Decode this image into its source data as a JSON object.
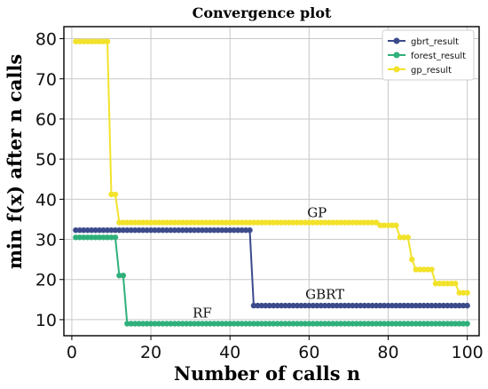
{
  "chart_data": {
    "type": "line",
    "title": "Convergence plot",
    "xlabel": "Number of calls n",
    "ylabel": "min f(x) after n calls",
    "xlim": [
      -2,
      103
    ],
    "ylim": [
      6,
      83
    ],
    "xticks": [
      0,
      20,
      40,
      60,
      80,
      100
    ],
    "yticks": [
      10,
      20,
      30,
      40,
      50,
      60,
      70,
      80
    ],
    "grid": true,
    "legend_position": "top-right",
    "series": [
      {
        "name": "gbrt_result",
        "color": "#3b4b8c",
        "points": [
          [
            1,
            32.3
          ],
          [
            45,
            32.3
          ],
          [
            46,
            13.5
          ],
          [
            100,
            13.5
          ]
        ]
      },
      {
        "name": "forest_result",
        "color": "#2fb07a",
        "points": [
          [
            1,
            30.5
          ],
          [
            11,
            30.5
          ],
          [
            12,
            21
          ],
          [
            13,
            21
          ],
          [
            14,
            9
          ],
          [
            100,
            9
          ]
        ]
      },
      {
        "name": "gp_result",
        "color": "#f2e22a",
        "points": [
          [
            1,
            79.3
          ],
          [
            9,
            79.3
          ],
          [
            10,
            41.2
          ],
          [
            11,
            41.2
          ],
          [
            12,
            34.2
          ],
          [
            77,
            34.2
          ],
          [
            78,
            33.5
          ],
          [
            82,
            33.5
          ],
          [
            83,
            30.5
          ],
          [
            85,
            30.5
          ],
          [
            86,
            25
          ],
          [
            87,
            22.5
          ],
          [
            91,
            22.5
          ],
          [
            92,
            19
          ],
          [
            97,
            19
          ],
          [
            98,
            16.7
          ],
          [
            100,
            16.7
          ]
        ]
      }
    ],
    "annotations": [
      {
        "text": "GP",
        "x": 62,
        "y": 35.5
      },
      {
        "text": "GBRT",
        "x": 64,
        "y": 15.2
      },
      {
        "text": "RF",
        "x": 33,
        "y": 10.5
      }
    ]
  }
}
